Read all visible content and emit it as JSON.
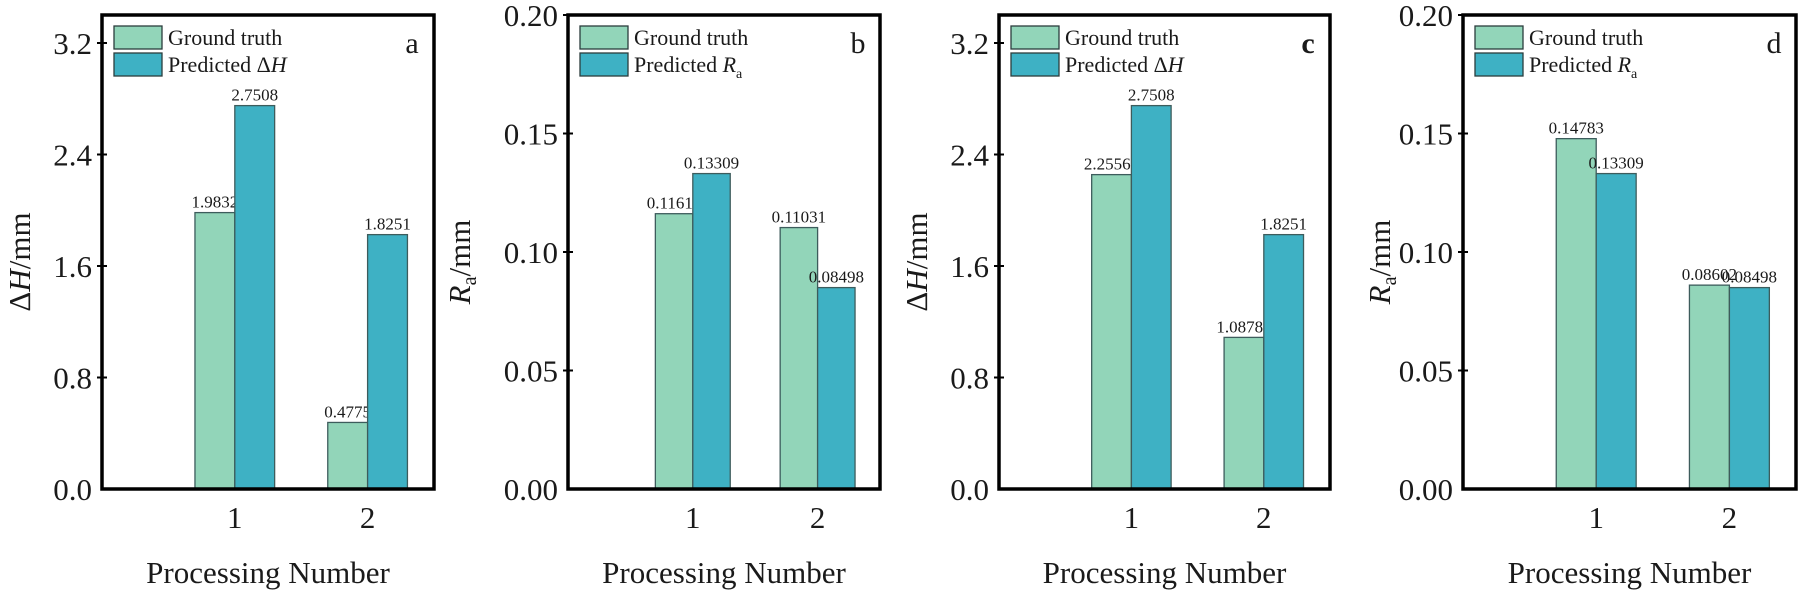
{
  "colors": {
    "ground_truth": "#92D5B9",
    "predicted": "#3EB1C4",
    "bar_edge": "#3D5C5C",
    "axis": "#000000"
  },
  "chart_data": [
    {
      "type": "bar",
      "panel": "a",
      "categories": [
        "1",
        "2"
      ],
      "series": [
        {
          "name": "Ground truth",
          "values": [
            1.9832,
            0.4775
          ],
          "labels": [
            "1.9832",
            "0.4775"
          ]
        },
        {
          "name": "Predicted ΔH",
          "values": [
            2.7508,
            1.8251
          ],
          "labels": [
            "2.7508",
            "1.8251"
          ]
        }
      ],
      "xlabel": "Processing Number",
      "ylabel": {
        "main": "ΔH",
        "italic": "H",
        "prefix": "Δ",
        "sub": "",
        "suffix": "/mm"
      },
      "ylim": [
        0,
        3.2
      ],
      "yticks": [
        "0.0",
        "0.8",
        "1.6",
        "2.4",
        "3.2"
      ],
      "ytick_values": [
        0,
        0.8,
        1.6,
        2.4,
        3.2
      ],
      "xlim": [
        0,
        2.5
      ],
      "legend": {
        "position": "top-left",
        "entries": [
          {
            "text": "Ground truth",
            "italic": "",
            "sub": ""
          },
          {
            "text": "Predicted Δ",
            "italic": "H",
            "sub": ""
          }
        ]
      },
      "grid": false
    },
    {
      "type": "bar",
      "panel": "b",
      "categories": [
        "1",
        "2"
      ],
      "series": [
        {
          "name": "Ground truth",
          "values": [
            0.11616,
            0.11031
          ],
          "labels": [
            "0.11616",
            "0.11031"
          ]
        },
        {
          "name": "Predicted Ra",
          "values": [
            0.13309,
            0.08498
          ],
          "labels": [
            "0.13309",
            "0.08498"
          ]
        }
      ],
      "xlabel": "Processing Number",
      "ylabel": {
        "main": "Ra/mm",
        "italic": "R",
        "prefix": "",
        "sub": "a",
        "suffix": "/mm"
      },
      "ylim": [
        0,
        0.2
      ],
      "yticks": [
        "0.00",
        "0.05",
        "0.10",
        "0.15",
        "0.20"
      ],
      "ytick_values": [
        0,
        0.05,
        0.1,
        0.15,
        0.2
      ],
      "xlim": [
        0,
        2.5
      ],
      "legend": {
        "position": "top-left",
        "entries": [
          {
            "text": "Ground truth",
            "italic": "",
            "sub": ""
          },
          {
            "text": "Predicted ",
            "italic": "R",
            "sub": "a"
          }
        ]
      },
      "grid": false
    },
    {
      "type": "bar",
      "panel": "c",
      "categories": [
        "1",
        "2"
      ],
      "series": [
        {
          "name": "Ground truth",
          "values": [
            2.25566,
            1.08781
          ],
          "labels": [
            "2.25566",
            "1.08781"
          ]
        },
        {
          "name": "Predicted ΔH",
          "values": [
            2.7508,
            1.8251
          ],
          "labels": [
            "2.7508",
            "1.8251"
          ]
        }
      ],
      "xlabel": "Processing Number",
      "ylabel": {
        "main": "ΔH",
        "italic": "H",
        "prefix": "Δ",
        "sub": "",
        "suffix": "/mm"
      },
      "ylim": [
        0,
        3.2
      ],
      "yticks": [
        "0.0",
        "0.8",
        "1.6",
        "2.4",
        "3.2"
      ],
      "ytick_values": [
        0,
        0.8,
        1.6,
        2.4,
        3.2
      ],
      "xlim": [
        0,
        2.5
      ],
      "legend": {
        "position": "top-left",
        "entries": [
          {
            "text": "Ground truth",
            "italic": "",
            "sub": ""
          },
          {
            "text": "Predicted Δ",
            "italic": "H",
            "sub": ""
          }
        ]
      },
      "grid": false
    },
    {
      "type": "bar",
      "panel": "d",
      "categories": [
        "1",
        "2"
      ],
      "series": [
        {
          "name": "Ground truth",
          "values": [
            0.14783,
            0.08602
          ],
          "labels": [
            "0.14783",
            "0.08602"
          ]
        },
        {
          "name": "Predicted Ra",
          "values": [
            0.13309,
            0.08498
          ],
          "labels": [
            "0.13309",
            "0.08498"
          ]
        }
      ],
      "xlabel": "Processing Number",
      "ylabel": {
        "main": "Ra/mm",
        "italic": "R",
        "prefix": "",
        "sub": "a",
        "suffix": "/mm"
      },
      "ylim": [
        0,
        0.2
      ],
      "yticks": [
        "0.00",
        "0.05",
        "0.10",
        "0.15",
        "0.20"
      ],
      "ytick_values": [
        0,
        0.05,
        0.1,
        0.15,
        0.2
      ],
      "xlim": [
        0,
        2.5
      ],
      "legend": {
        "position": "top-left",
        "entries": [
          {
            "text": "Ground truth",
            "italic": "",
            "sub": ""
          },
          {
            "text": "Predicted ",
            "italic": "R",
            "sub": "a"
          }
        ]
      },
      "grid": false
    }
  ]
}
